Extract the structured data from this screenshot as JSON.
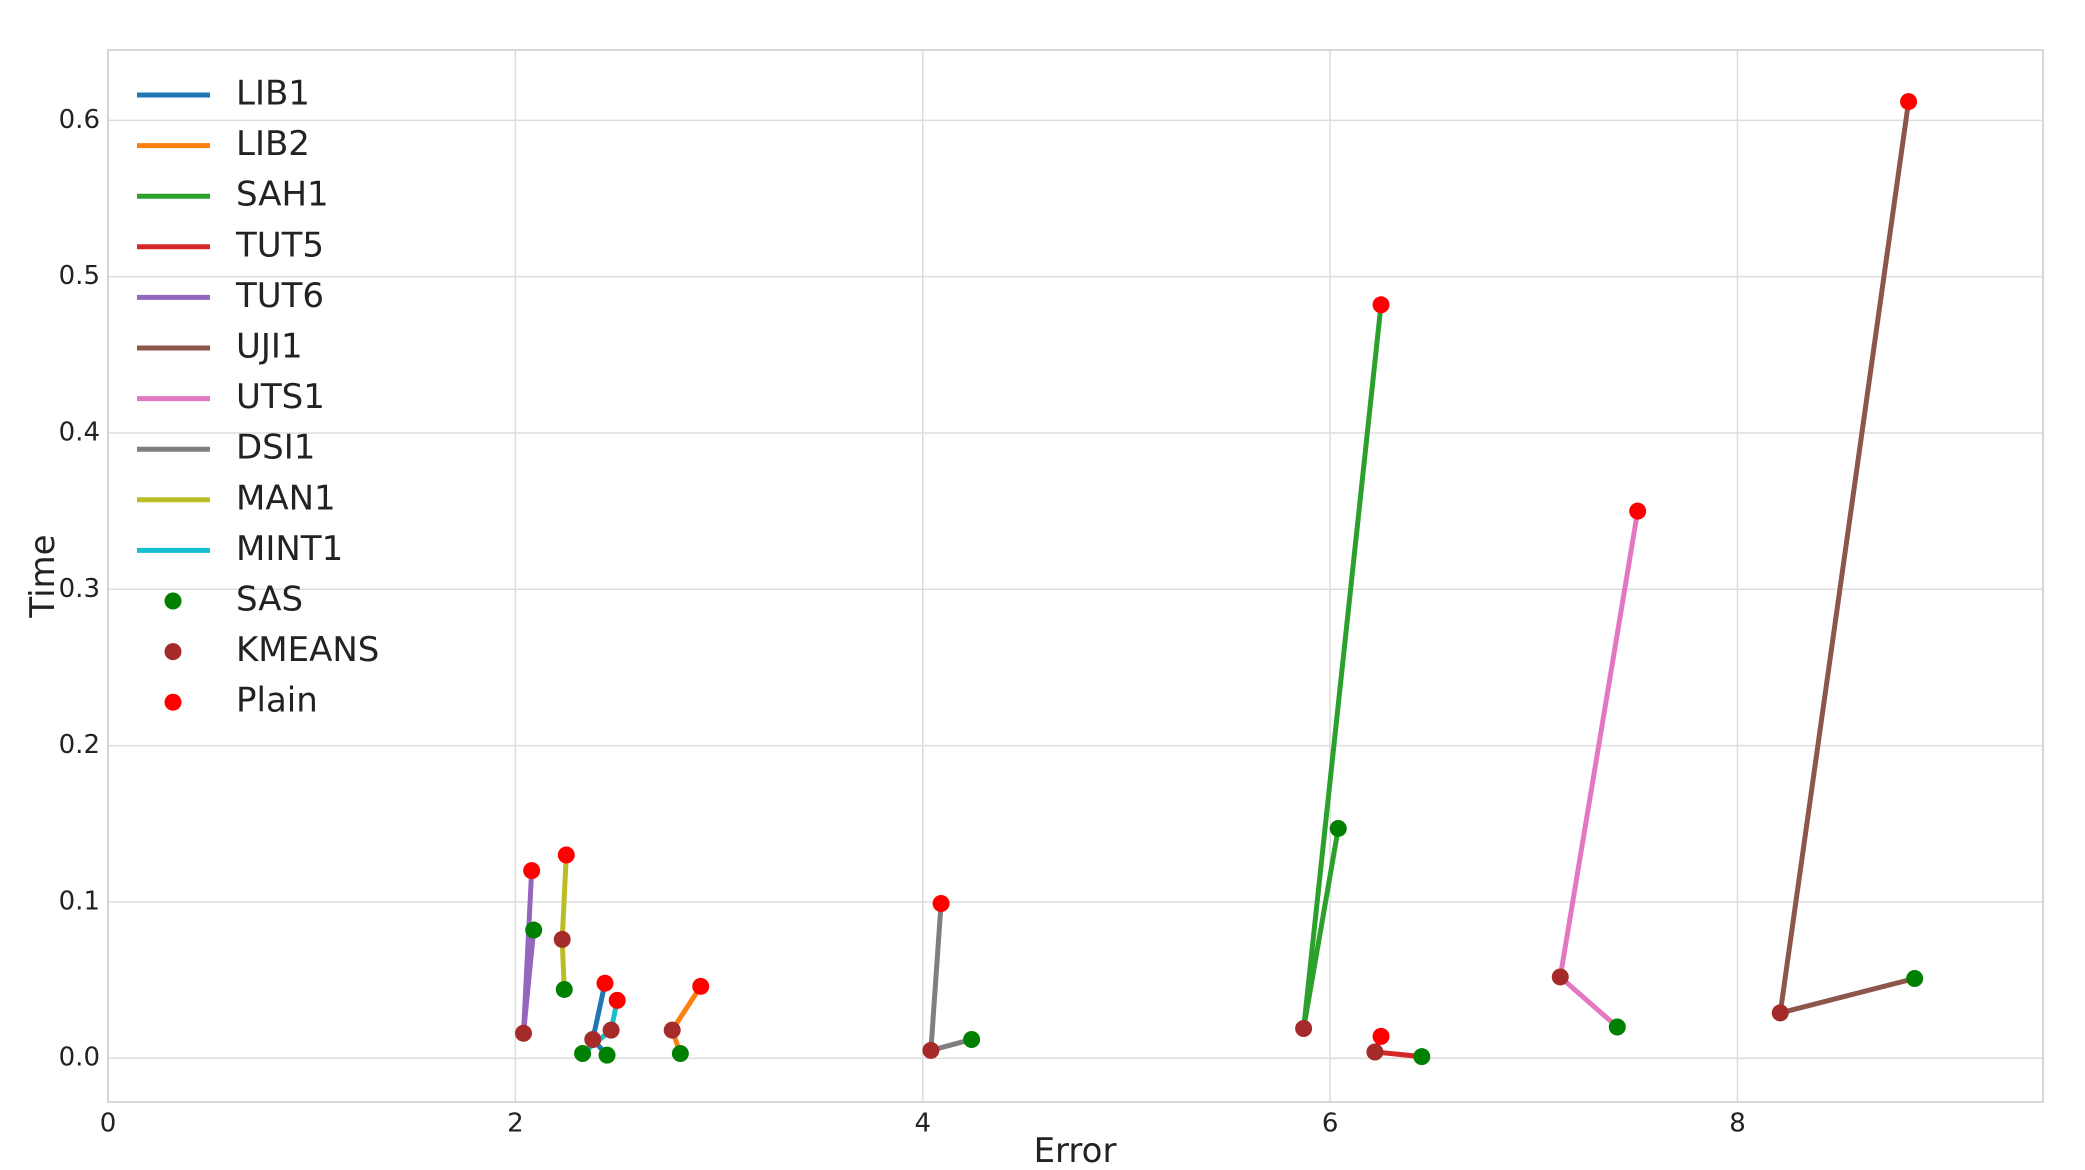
{
  "chart_data": {
    "type": "line",
    "xlabel": "Error",
    "ylabel": "Time",
    "xlim": [
      0,
      9.5
    ],
    "ylim": [
      -0.028,
      0.645
    ],
    "xticks": [
      0,
      2,
      4,
      6,
      8
    ],
    "yticks": [
      0.0,
      0.1,
      0.2,
      0.3,
      0.4,
      0.5,
      0.6
    ],
    "xtick_labels": [
      "0",
      "2",
      "4",
      "6",
      "8"
    ],
    "ytick_labels": [
      "0.0",
      "0.1",
      "0.2",
      "0.3",
      "0.4",
      "0.5",
      "0.6"
    ],
    "grid": true,
    "legend_position": "upper-left",
    "marker_types": [
      {
        "name": "SAS",
        "color": "#008000"
      },
      {
        "name": "KMEANS",
        "color": "#a52a2a"
      },
      {
        "name": "Plain",
        "color": "#ff0000"
      }
    ],
    "series": [
      {
        "name": "LIB1",
        "color": "#1f77b4",
        "points": [
          [
            2.45,
            0.002
          ],
          [
            2.38,
            0.012
          ],
          [
            2.44,
            0.048
          ]
        ]
      },
      {
        "name": "LIB2",
        "color": "#ff7f0e",
        "points": [
          [
            2.81,
            0.003
          ],
          [
            2.77,
            0.018
          ],
          [
            2.91,
            0.046
          ]
        ]
      },
      {
        "name": "SAH1",
        "color": "#2ca02c",
        "points": [
          [
            6.04,
            0.147
          ],
          [
            5.87,
            0.019
          ],
          [
            6.25,
            0.482
          ]
        ]
      },
      {
        "name": "TUT5",
        "color": "#d62728",
        "points": [
          [
            6.45,
            0.001
          ],
          [
            6.22,
            0.004
          ],
          [
            6.25,
            0.014
          ]
        ]
      },
      {
        "name": "TUT6",
        "color": "#9467bd",
        "points": [
          [
            2.09,
            0.082
          ],
          [
            2.04,
            0.016
          ],
          [
            2.08,
            0.12
          ]
        ]
      },
      {
        "name": "UJI1",
        "color": "#8c564b",
        "points": [
          [
            8.87,
            0.051
          ],
          [
            8.21,
            0.029
          ],
          [
            8.84,
            0.612
          ]
        ]
      },
      {
        "name": "UTS1",
        "color": "#e377c2",
        "points": [
          [
            7.41,
            0.02
          ],
          [
            7.13,
            0.052
          ],
          [
            7.51,
            0.35
          ]
        ]
      },
      {
        "name": "DSI1",
        "color": "#7f7f7f",
        "points": [
          [
            4.24,
            0.012
          ],
          [
            4.04,
            0.005
          ],
          [
            4.09,
            0.099
          ]
        ]
      },
      {
        "name": "MAN1",
        "color": "#bcbd22",
        "points": [
          [
            2.24,
            0.044
          ],
          [
            2.23,
            0.076
          ],
          [
            2.25,
            0.13
          ]
        ]
      },
      {
        "name": "MINT1",
        "color": "#17becf",
        "points": [
          [
            2.33,
            0.003
          ],
          [
            2.47,
            0.018
          ],
          [
            2.5,
            0.037
          ]
        ]
      }
    ]
  }
}
